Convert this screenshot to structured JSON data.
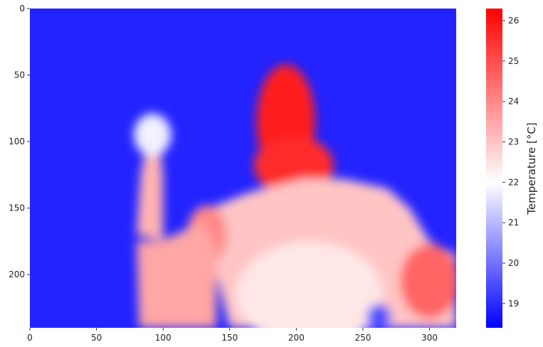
{
  "chart_data": {
    "type": "heatmap",
    "title": "",
    "xlabel": "",
    "ylabel": "",
    "xlim": [
      0,
      320
    ],
    "ylim": [
      240,
      0
    ],
    "x_ticks": [
      0,
      50,
      100,
      150,
      200,
      250,
      300
    ],
    "y_ticks": [
      0,
      50,
      100,
      150,
      200
    ],
    "colormap": "bwr",
    "colorbar": {
      "label": "Temperature [°C]",
      "range": [
        18.4,
        26.3
      ],
      "ticks": [
        19,
        20,
        21,
        22,
        23,
        24,
        25,
        26
      ],
      "colors": [
        "#0000ff",
        "#ffffff",
        "#ff0000"
      ],
      "placement": "right"
    },
    "background_temperature": 18.9,
    "regions": [
      {
        "name": "head",
        "shape": "ellipse",
        "cx": 192,
        "cy": 85,
        "rx": 22,
        "ry": 43,
        "temperature": 25.8
      },
      {
        "name": "neck",
        "shape": "ellipse",
        "cx": 198,
        "cy": 118,
        "rx": 30,
        "ry": 22,
        "temperature": 25.6
      },
      {
        "name": "torso",
        "shape": "polygon",
        "points": [
          [
            123,
            155
          ],
          [
            165,
            138
          ],
          [
            205,
            128
          ],
          [
            235,
            128
          ],
          [
            268,
            135
          ],
          [
            285,
            150
          ],
          [
            300,
            175
          ],
          [
            320,
            185
          ],
          [
            320,
            240
          ],
          [
            150,
            240
          ],
          [
            140,
            200
          ]
        ],
        "temperature": 23.0
      },
      {
        "name": "left-shoulder",
        "shape": "ellipse",
        "cx": 133,
        "cy": 170,
        "rx": 15,
        "ry": 22,
        "temperature": 24.0
      },
      {
        "name": "right-shoulder",
        "shape": "ellipse",
        "cx": 300,
        "cy": 205,
        "rx": 22,
        "ry": 28,
        "temperature": 24.6
      },
      {
        "name": "upper-arm",
        "shape": "polygon",
        "points": [
          [
            80,
            175
          ],
          [
            98,
            175
          ],
          [
            130,
            160
          ],
          [
            140,
            180
          ],
          [
            140,
            240
          ],
          [
            82,
            240
          ]
        ],
        "temperature": 23.5
      },
      {
        "name": "forearm",
        "shape": "polygon",
        "points": [
          [
            80,
            170
          ],
          [
            83,
            125
          ],
          [
            88,
            100
          ],
          [
            97,
            100
          ],
          [
            100,
            125
          ],
          [
            100,
            175
          ]
        ],
        "temperature": 23.3
      },
      {
        "name": "hand",
        "shape": "ellipse",
        "cx": 92,
        "cy": 95,
        "rx": 14,
        "ry": 16,
        "temperature": 21.8
      },
      {
        "name": "lower-torso",
        "shape": "ellipse",
        "cx": 210,
        "cy": 215,
        "rx": 55,
        "ry": 40,
        "temperature": 22.4
      },
      {
        "name": "cold-pocket",
        "shape": "ellipse",
        "cx": 262,
        "cy": 232,
        "rx": 9,
        "ry": 10,
        "temperature": 19.5
      }
    ]
  }
}
